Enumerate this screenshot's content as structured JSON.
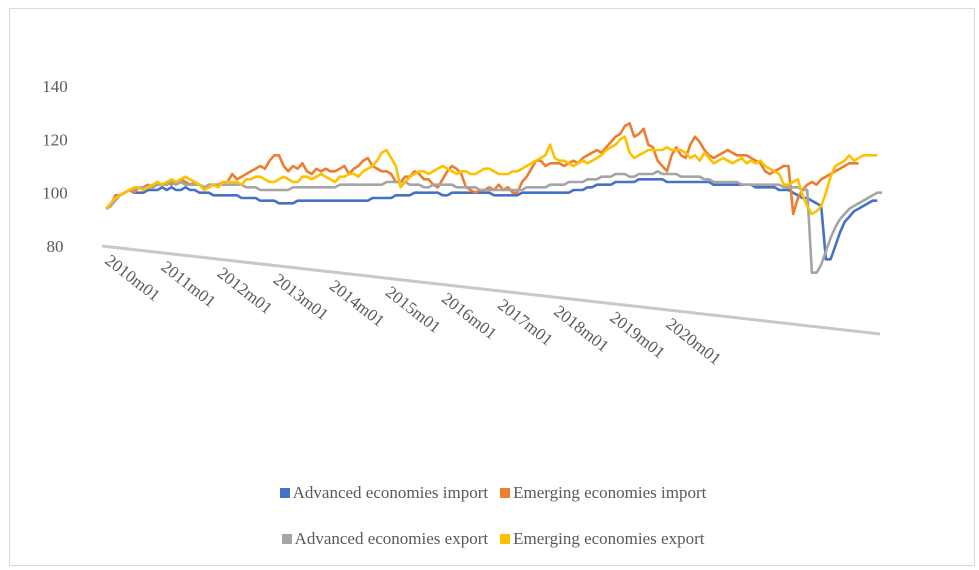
{
  "chart_data": {
    "type": "line",
    "title": "",
    "xlabel": "",
    "ylabel": "",
    "ylim": [
      80,
      140
    ],
    "yticks": [
      "80",
      "100",
      "120",
      "140"
    ],
    "grid": false,
    "legend_position": "bottom",
    "x_start": "2010m01",
    "x_end": "2020m12",
    "tick_labels": [
      "2010m01",
      "2011m01",
      "2012m01",
      "2013m01",
      "2014m01",
      "2015m01",
      "2016m01",
      "2017m01",
      "2018m01",
      "2019m01",
      "2020m01"
    ],
    "series": [
      {
        "name": "Advanced economies import",
        "color": "#4472c4",
        "values": [
          94,
          95,
          98,
          99,
          100,
          101,
          100,
          100,
          100,
          101,
          101,
          101,
          102,
          101,
          102,
          101,
          101,
          102,
          101,
          101,
          100,
          100,
          100,
          99,
          99,
          99,
          99,
          99,
          99,
          98,
          98,
          98,
          98,
          97,
          97,
          97,
          97,
          96,
          96,
          96,
          96,
          97,
          97,
          97,
          97,
          97,
          97,
          97,
          97,
          97,
          97,
          97,
          97,
          97,
          97,
          97,
          97,
          98,
          98,
          98,
          98,
          98,
          99,
          99,
          99,
          99,
          100,
          100,
          100,
          100,
          100,
          100,
          99,
          99,
          100,
          100,
          100,
          100,
          100,
          100,
          100,
          100,
          100,
          99,
          99,
          99,
          99,
          99,
          99,
          100,
          100,
          100,
          100,
          100,
          100,
          100,
          100,
          100,
          100,
          100,
          101,
          101,
          101,
          102,
          102,
          103,
          103,
          103,
          103,
          104,
          104,
          104,
          104,
          104,
          105,
          105,
          105,
          105,
          105,
          105,
          104,
          104,
          104,
          104,
          104,
          104,
          104,
          104,
          104,
          104,
          103,
          103,
          103,
          103,
          103,
          103,
          103,
          103,
          103,
          102,
          102,
          102,
          102,
          102,
          101,
          101,
          101,
          100,
          99,
          98,
          98,
          97,
          96,
          95,
          75,
          75,
          80,
          85,
          89,
          91,
          93,
          94,
          95,
          96,
          97,
          97
        ],
        "note_ignore": ""
      },
      {
        "name": "Emerging economies import",
        "color": "#ed7d31",
        "values": [
          94,
          95,
          99,
          99,
          100,
          101,
          100,
          102,
          102,
          103,
          102,
          103,
          103,
          104,
          103,
          104,
          105,
          104,
          103,
          104,
          103,
          102,
          102,
          103,
          103,
          104,
          104,
          107,
          105,
          106,
          107,
          108,
          109,
          110,
          109,
          112,
          114,
          114,
          110,
          108,
          110,
          109,
          111,
          108,
          107,
          109,
          108,
          109,
          108,
          108,
          109,
          110,
          107,
          109,
          110,
          112,
          113,
          110,
          109,
          108,
          108,
          107,
          104,
          104,
          106,
          106,
          108,
          107,
          105,
          105,
          103,
          102,
          105,
          108,
          110,
          109,
          107,
          102,
          101,
          100,
          101,
          101,
          102,
          101,
          103,
          101,
          102,
          100,
          100,
          104,
          106,
          109,
          112,
          112,
          110,
          111,
          111,
          111,
          110,
          111,
          112,
          111,
          113,
          114,
          115,
          116,
          115,
          117,
          119,
          121,
          122,
          125,
          126,
          121,
          122,
          124,
          118,
          117,
          112,
          110,
          108,
          114,
          117,
          114,
          113,
          118,
          121,
          119,
          116,
          114,
          113,
          114,
          115,
          116,
          115,
          114,
          114,
          114,
          113,
          112,
          111,
          108,
          107,
          108,
          109,
          110,
          110,
          92,
          98,
          101,
          103,
          104,
          103,
          105,
          106,
          107,
          108,
          109,
          110,
          111,
          111,
          111
        ],
        "note_ignore": ""
      },
      {
        "name": "Advanced economies export",
        "color": "#a5a5a5",
        "values": [
          94,
          95,
          97,
          99,
          100,
          101,
          101,
          102,
          102,
          102,
          102,
          103,
          103,
          103,
          104,
          103,
          104,
          103,
          103,
          103,
          103,
          102,
          103,
          103,
          103,
          103,
          103,
          103,
          103,
          103,
          102,
          102,
          102,
          101,
          101,
          101,
          101,
          101,
          101,
          101,
          102,
          102,
          102,
          102,
          102,
          102,
          102,
          102,
          102,
          102,
          103,
          103,
          103,
          103,
          103,
          103,
          103,
          103,
          103,
          103,
          104,
          104,
          104,
          104,
          104,
          103,
          103,
          103,
          102,
          102,
          103,
          103,
          103,
          103,
          103,
          102,
          102,
          102,
          102,
          102,
          101,
          101,
          101,
          101,
          101,
          101,
          101,
          101,
          101,
          101,
          102,
          102,
          102,
          102,
          102,
          103,
          103,
          103,
          103,
          104,
          104,
          104,
          104,
          105,
          105,
          105,
          106,
          106,
          106,
          107,
          107,
          107,
          106,
          106,
          107,
          107,
          107,
          107,
          108,
          107,
          107,
          107,
          107,
          106,
          106,
          106,
          106,
          106,
          105,
          105,
          104,
          104,
          104,
          104,
          104,
          104,
          103,
          103,
          103,
          103,
          103,
          103,
          103,
          103,
          103,
          102,
          102,
          102,
          102,
          101,
          101,
          70,
          70,
          73,
          78,
          83,
          87,
          90,
          92,
          94,
          95,
          96,
          97,
          98,
          99,
          100,
          100
        ],
        "note_ignore": ""
      },
      {
        "name": "Emerging economies export",
        "color": "#ffc000",
        "values": [
          94,
          96,
          98,
          99,
          100,
          101,
          102,
          102,
          101,
          102,
          103,
          104,
          103,
          104,
          105,
          104,
          105,
          106,
          105,
          104,
          103,
          101,
          102,
          103,
          102,
          104,
          104,
          104,
          104,
          103,
          105,
          105,
          106,
          106,
          105,
          104,
          104,
          105,
          106,
          105,
          104,
          104,
          106,
          106,
          105,
          106,
          107,
          106,
          105,
          104,
          106,
          106,
          107,
          107,
          106,
          108,
          109,
          110,
          112,
          115,
          116,
          113,
          110,
          102,
          104,
          106,
          107,
          108,
          108,
          107,
          108,
          109,
          110,
          109,
          108,
          107,
          108,
          108,
          107,
          107,
          108,
          109,
          109,
          108,
          107,
          107,
          107,
          108,
          108,
          109,
          110,
          111,
          112,
          113,
          114,
          118,
          113,
          112,
          112,
          111,
          110,
          111,
          112,
          111,
          112,
          113,
          114,
          116,
          117,
          118,
          120,
          121,
          115,
          113,
          114,
          115,
          116,
          116,
          116,
          116,
          117,
          116,
          116,
          116,
          115,
          113,
          114,
          112,
          115,
          113,
          111,
          112,
          113,
          112,
          111,
          112,
          113,
          111,
          112,
          111,
          112,
          110,
          109,
          108,
          107,
          103,
          103,
          104,
          105,
          99,
          95,
          92,
          93,
          95,
          100,
          106,
          110,
          111,
          112,
          114,
          112,
          113,
          114,
          114,
          114,
          114
        ],
        "note_ignore": ""
      }
    ]
  }
}
